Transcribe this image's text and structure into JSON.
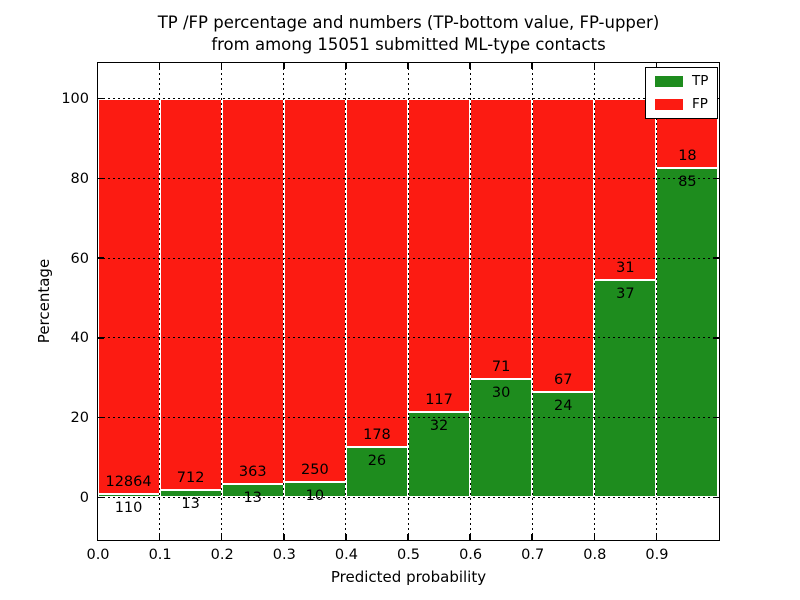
{
  "figure": {
    "titles": {
      "line1": "TP /FP percentage and numbers (TP-bottom value, FP-upper)",
      "line2": "from among 15051 submitted ML-type contacts"
    },
    "xlabel": "Predicted probability",
    "ylabel": "Percentage"
  },
  "legend": {
    "items": [
      {
        "label": "TP",
        "color": "#1e8c1e"
      },
      {
        "label": "FP",
        "color": "#fc1b12"
      }
    ]
  },
  "chart_data": {
    "type": "bar",
    "stacked": true,
    "normalized": "percent-of-bin-total",
    "title": "TP /FP percentage and numbers (TP-bottom value, FP-upper) from among 15051 submitted ML-type contacts",
    "xlabel": "Predicted probability",
    "ylabel": "Percentage",
    "total_contacts": 15051,
    "bins": [
      "0.0-0.1",
      "0.1-0.2",
      "0.2-0.3",
      "0.3-0.4",
      "0.4-0.5",
      "0.5-0.6",
      "0.6-0.7",
      "0.7-0.8",
      "0.8-0.9",
      "0.9-1.0"
    ],
    "series": [
      {
        "name": "TP",
        "color": "#1e8c1e",
        "values": [
          110,
          13,
          13,
          10,
          26,
          32,
          30,
          24,
          37,
          85
        ]
      },
      {
        "name": "FP",
        "color": "#fc1b12",
        "values": [
          12864,
          712,
          363,
          250,
          178,
          117,
          71,
          67,
          31,
          18
        ]
      }
    ],
    "tp_percent_of_bin": [
      0.85,
      1.79,
      3.46,
      3.85,
      12.75,
      21.48,
      29.7,
      26.37,
      54.41,
      82.52
    ],
    "xticks": [
      "0.0",
      "0.1",
      "0.2",
      "0.3",
      "0.4",
      "0.5",
      "0.6",
      "0.7",
      "0.8",
      "0.9"
    ],
    "yticks": [
      0,
      20,
      40,
      60,
      80,
      100
    ],
    "xlim": [
      0.0,
      1.0
    ],
    "ylim": [
      -10.5,
      109
    ],
    "grid": "dotted-both-axes",
    "legend_position": "upper-right",
    "bar_edge_color": "#ffffff"
  }
}
